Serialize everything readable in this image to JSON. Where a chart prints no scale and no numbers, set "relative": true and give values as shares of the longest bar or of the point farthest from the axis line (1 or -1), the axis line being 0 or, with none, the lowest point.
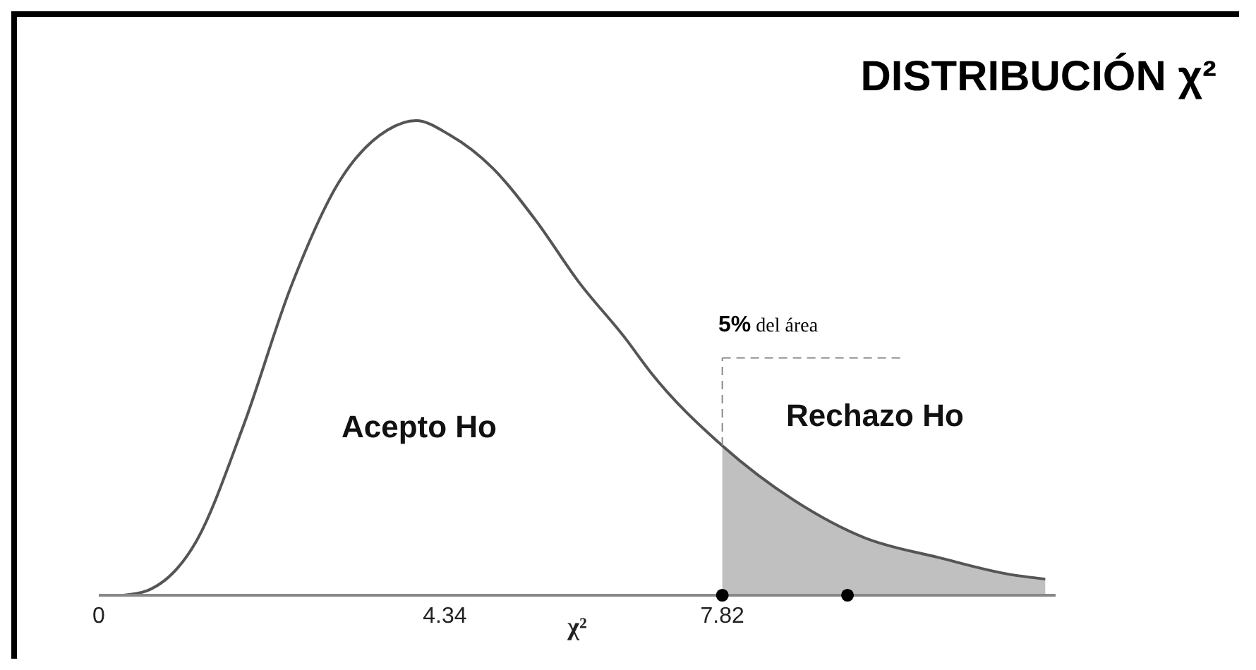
{
  "chart_data": {
    "type": "line",
    "title": "DISTRIBUCIÓN χ²",
    "xlabel": "χ²",
    "relative": true,
    "xlim": [
      0,
      12
    ],
    "xticks": [
      0,
      4.34,
      7.82
    ],
    "grid": false,
    "marker": "none",
    "series": [
      {
        "color": "#555555",
        "x": [
          0.31,
          0.61,
          1.21,
          1.82,
          2.41,
          3.01,
          3.62,
          3.98,
          4.4,
          4.94,
          5.48,
          6.02,
          6.61,
          6.92,
          7.82,
          8.72,
          9.62,
          10.52,
          11.42,
          11.87
        ],
        "values": [
          0,
          0.01,
          0.11,
          0.36,
          0.65,
          0.87,
          0.98,
          1,
          0.97,
          0.9,
          0.79,
          0.66,
          0.54,
          0.47,
          0.315,
          0.2,
          0.12,
          0.08,
          0.044,
          0.034
        ]
      },
      {
        "type": "area",
        "color": "#c0c0c0",
        "x": [
          7.82,
          8.72,
          9.62,
          10.52,
          11.42,
          11.87
        ],
        "values": [
          0.315,
          0.2,
          0.12,
          0.08,
          0.044,
          0.034
        ]
      },
      {
        "type": "scatter",
        "color": "#000000",
        "marker": "circle",
        "x": [
          7.82,
          9.39
        ],
        "values": [
          0,
          0
        ]
      }
    ],
    "ref_lines": [
      {
        "axis": "x",
        "value": 7.82,
        "color": "#888888",
        "line_style": "dashed"
      }
    ],
    "annotations": [
      "Acepto Ho",
      "Rechazo Ho",
      "5% del área"
    ]
  }
}
